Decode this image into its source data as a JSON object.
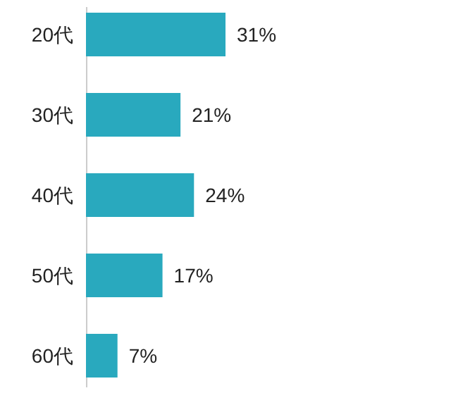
{
  "chart_data": {
    "type": "bar",
    "orientation": "horizontal",
    "categories": [
      "20代",
      "30代",
      "40代",
      "50代",
      "60代"
    ],
    "values": [
      31,
      21,
      24,
      17,
      7
    ],
    "color": "#29a9be",
    "value_labels": [
      "31%",
      "21%",
      "24%",
      "17%",
      "7%"
    ]
  }
}
